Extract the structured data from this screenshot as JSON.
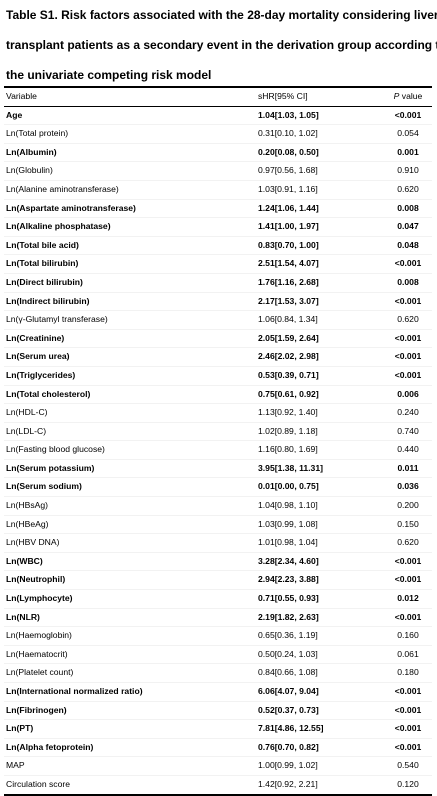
{
  "caption": {
    "line1": "Table S1. Risk factors associated with the 28-day mortality considering liver",
    "line2": "transplant patients as a secondary event in the derivation group according to",
    "line3": "the univariate competing risk model"
  },
  "header": {
    "variable": "Variable",
    "shr": "sHR[95% CI]",
    "p_italic": "P",
    "p_rest": " value"
  },
  "rows": [
    {
      "v": "Age",
      "s": "1.04[1.03, 1.05]",
      "p": "<0.001",
      "b": true
    },
    {
      "v": "Ln(Total protein)",
      "s": "0.31[0.10, 1.02]",
      "p": "0.054",
      "b": false
    },
    {
      "v": "Ln(Albumin)",
      "s": "0.20[0.08, 0.50]",
      "p": "0.001",
      "b": true
    },
    {
      "v": "Ln(Globulin)",
      "s": "0.97[0.56, 1.68]",
      "p": "0.910",
      "b": false
    },
    {
      "v": "Ln(Alanine aminotransferase)",
      "s": "1.03[0.91, 1.16]",
      "p": "0.620",
      "b": false
    },
    {
      "v": "Ln(Aspartate aminotransferase)",
      "s": "1.24[1.06, 1.44]",
      "p": "0.008",
      "b": true
    },
    {
      "v": "Ln(Alkaline phosphatase)",
      "s": "1.41[1.00, 1.97]",
      "p": "0.047",
      "b": true
    },
    {
      "v": "Ln(Total bile acid)",
      "s": "0.83[0.70, 1.00]",
      "p": "0.048",
      "b": true
    },
    {
      "v": "Ln(Total bilirubin)",
      "s": "2.51[1.54, 4.07]",
      "p": "<0.001",
      "b": true
    },
    {
      "v": "Ln(Direct bilirubin)",
      "s": "1.76[1.16, 2.68]",
      "p": "0.008",
      "b": true
    },
    {
      "v": "Ln(Indirect bilirubin)",
      "s": "2.17[1.53, 3.07]",
      "p": "<0.001",
      "b": true
    },
    {
      "v": "Ln(γ-Glutamyl transferase)",
      "s": "1.06[0.84, 1.34]",
      "p": "0.620",
      "b": false
    },
    {
      "v": "Ln(Creatinine)",
      "s": "2.05[1.59, 2.64]",
      "p": "<0.001",
      "b": true
    },
    {
      "v": "Ln(Serum urea)",
      "s": "2.46[2.02, 2.98]",
      "p": "<0.001",
      "b": true
    },
    {
      "v": "Ln(Triglycerides)",
      "s": "0.53[0.39, 0.71]",
      "p": "<0.001",
      "b": true
    },
    {
      "v": "Ln(Total cholesterol)",
      "s": "0.75[0.61, 0.92]",
      "p": "0.006",
      "b": true
    },
    {
      "v": "Ln(HDL-C)",
      "s": "1.13[0.92, 1.40]",
      "p": "0.240",
      "b": false
    },
    {
      "v": "Ln(LDL-C)",
      "s": "1.02[0.89, 1.18]",
      "p": "0.740",
      "b": false
    },
    {
      "v": "Ln(Fasting blood glucose)",
      "s": "1.16[0.80, 1.69]",
      "p": "0.440",
      "b": false
    },
    {
      "v": "Ln(Serum potassium)",
      "s": "3.95[1.38, 11.31]",
      "p": "0.011",
      "b": true
    },
    {
      "v": "Ln(Serum sodium)",
      "s": "0.01[0.00, 0.75]",
      "p": "0.036",
      "b": true
    },
    {
      "v": "Ln(HBsAg)",
      "s": "1.04[0.98, 1.10]",
      "p": "0.200",
      "b": false
    },
    {
      "v": "Ln(HBeAg)",
      "s": "1.03[0.99, 1.08]",
      "p": "0.150",
      "b": false
    },
    {
      "v": "Ln(HBV DNA)",
      "s": "1.01[0.98, 1.04]",
      "p": "0.620",
      "b": false
    },
    {
      "v": "Ln(WBC)",
      "s": "3.28[2.34, 4.60]",
      "p": "<0.001",
      "b": true
    },
    {
      "v": "Ln(Neutrophil)",
      "s": "2.94[2.23, 3.88]",
      "p": "<0.001",
      "b": true
    },
    {
      "v": "Ln(Lymphocyte)",
      "s": "0.71[0.55, 0.93]",
      "p": "0.012",
      "b": true
    },
    {
      "v": "Ln(NLR)",
      "s": "2.19[1.82, 2.63]",
      "p": "<0.001",
      "b": true
    },
    {
      "v": "Ln(Haemoglobin)",
      "s": "0.65[0.36, 1.19]",
      "p": "0.160",
      "b": false
    },
    {
      "v": "Ln(Haematocrit)",
      "s": "0.50[0.24, 1.03]",
      "p": "0.061",
      "b": false
    },
    {
      "v": "Ln(Platelet count)",
      "s": "0.84[0.66, 1.08]",
      "p": "0.180",
      "b": false
    },
    {
      "v": "Ln(International normalized ratio)",
      "s": "6.06[4.07, 9.04]",
      "p": "<0.001",
      "b": true
    },
    {
      "v": "Ln(Fibrinogen)",
      "s": "0.52[0.37, 0.73]",
      "p": "<0.001",
      "b": true
    },
    {
      "v": "Ln(PT)",
      "s": "7.81[4.86, 12.55]",
      "p": "<0.001",
      "b": true
    },
    {
      "v": "Ln(Alpha fetoprotein)",
      "s": "0.76[0.70, 0.82]",
      "p": "<0.001",
      "b": true
    },
    {
      "v": "MAP",
      "s": "1.00[0.99, 1.02]",
      "p": "0.540",
      "b": false
    },
    {
      "v": "Circulation score",
      "s": "1.42[0.92, 2.21]",
      "p": "0.120",
      "b": false
    }
  ]
}
